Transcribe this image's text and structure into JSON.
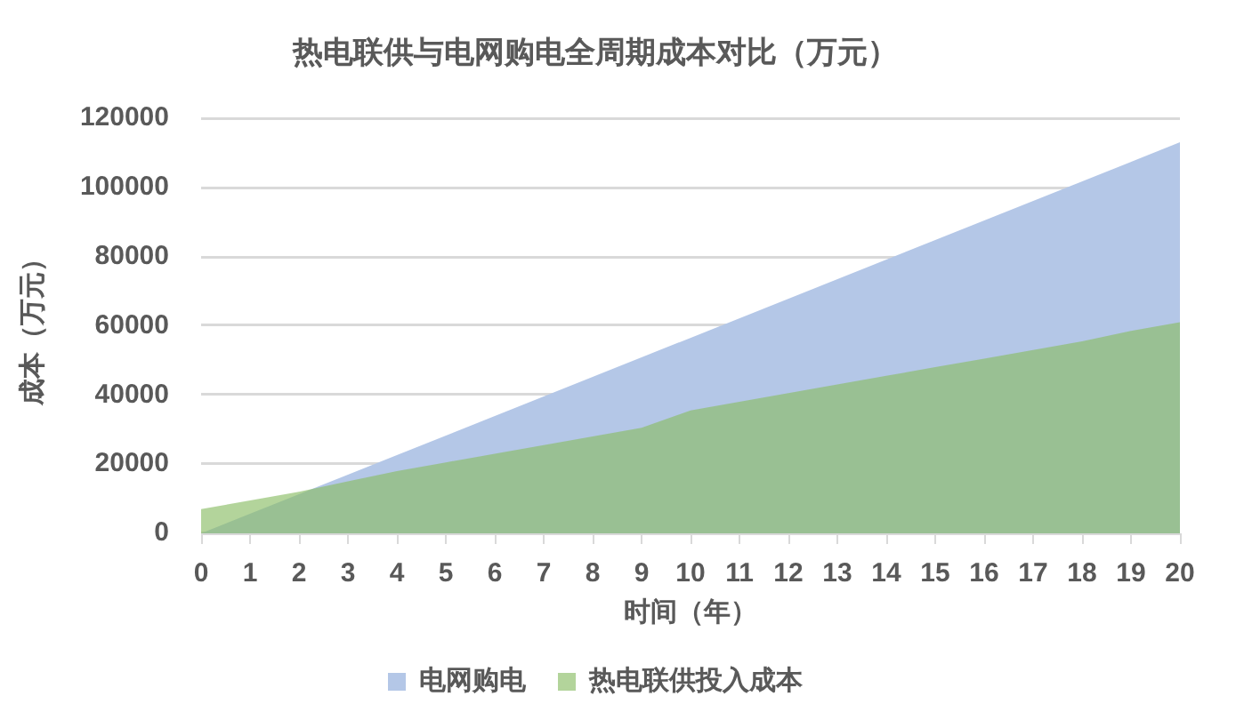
{
  "chart_data": {
    "type": "area",
    "title": "热电联供与电网购电全周期成本对比（万元）",
    "xlabel": "时间（年）",
    "ylabel": "成本（万元）",
    "x": [
      0,
      1,
      2,
      3,
      4,
      5,
      6,
      7,
      8,
      9,
      10,
      11,
      12,
      13,
      14,
      15,
      16,
      17,
      18,
      19,
      20
    ],
    "series": [
      {
        "name": "电网购电",
        "color": "#b4c7e7",
        "x": [
          0,
          20
        ],
        "values": [
          0,
          113000
        ]
      },
      {
        "name": "热电联供投入成本",
        "color": "#8abd65",
        "values": [
          7000,
          9500,
          12000,
          15000,
          18000,
          20500,
          23000,
          25500,
          28000,
          30500,
          35500,
          38000,
          40500,
          43000,
          45500,
          48000,
          50500,
          53000,
          55500,
          58500,
          61000
        ]
      }
    ],
    "xlim": [
      0,
      20
    ],
    "xticks": [
      0,
      1,
      2,
      3,
      4,
      5,
      6,
      7,
      8,
      9,
      10,
      11,
      12,
      13,
      14,
      15,
      16,
      17,
      18,
      19,
      20
    ],
    "ylim": [
      0,
      120000
    ],
    "yticks": [
      0,
      20000,
      40000,
      60000,
      80000,
      100000,
      120000
    ],
    "grid": "y",
    "legend": "bottom"
  }
}
